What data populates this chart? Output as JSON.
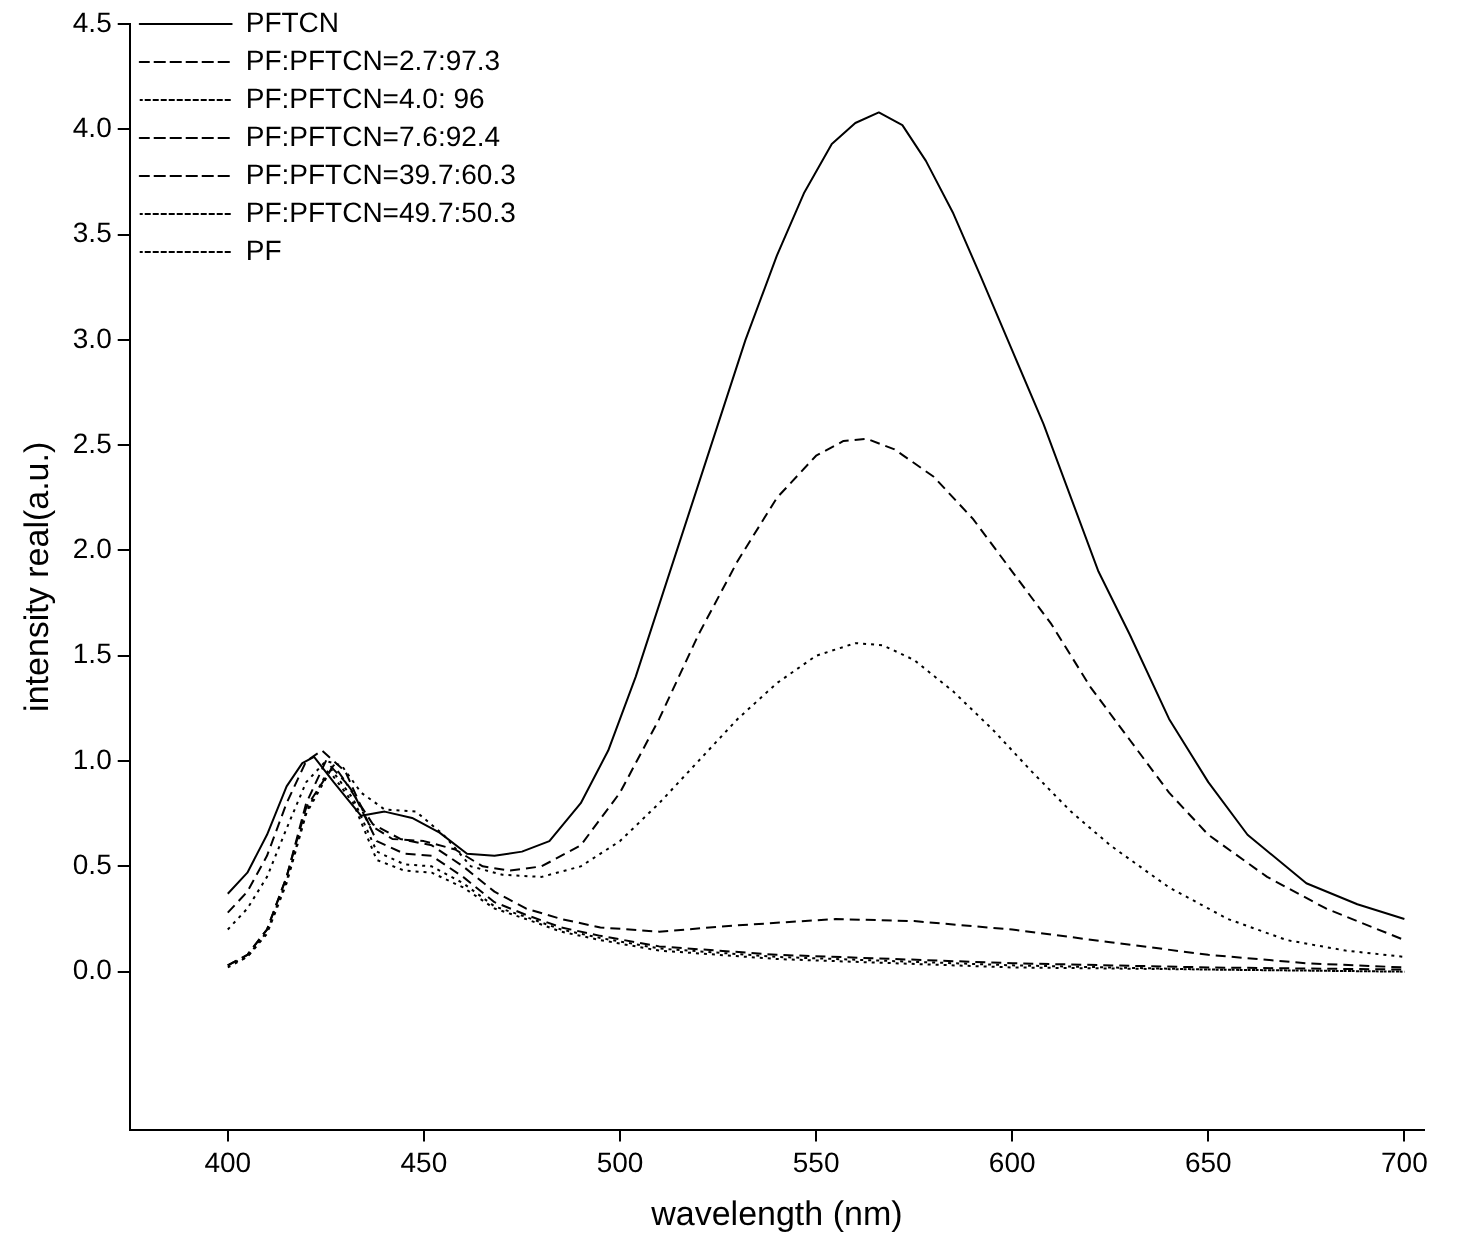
{
  "chart_data": {
    "type": "line",
    "xlabel": "wavelength (nm)",
    "ylabel": "intensity real(a.u.)",
    "xlim": [
      375,
      705
    ],
    "xticks": [
      400,
      450,
      500,
      550,
      600,
      650,
      700
    ],
    "ylim": [
      -0.75,
      4.5
    ],
    "yticks": [
      {
        "value": 0,
        "label": "0.0"
      },
      {
        "value": 0.5,
        "label": "0.5"
      },
      {
        "value": 1,
        "label": "1.0"
      },
      {
        "value": 1.5,
        "label": "1.5"
      },
      {
        "value": 2,
        "label": "2.0"
      },
      {
        "value": 2.5,
        "label": "2.5"
      },
      {
        "value": 3,
        "label": "3.0"
      },
      {
        "value": 3.5,
        "label": "3.5"
      },
      {
        "value": 4,
        "label": "4.0"
      },
      {
        "value": 4.5,
        "label": "4.5"
      }
    ],
    "grid": false,
    "legend": "top left",
    "marker": "none",
    "series": [
      {
        "name": "PFTCN",
        "color": "#000000",
        "line_style": "solid",
        "x": [
          400,
          405,
          410,
          415,
          419,
          422,
          427,
          434,
          440,
          447,
          454,
          461,
          468,
          475,
          482,
          490,
          497,
          504,
          511,
          518,
          525,
          532,
          540,
          547,
          554,
          560,
          566,
          572,
          578,
          585,
          592,
          600,
          608,
          615,
          622,
          630,
          640,
          650,
          660,
          675,
          688,
          700
        ],
        "values": [
          0.37,
          0.47,
          0.65,
          0.88,
          0.99,
          1.02,
          0.9,
          0.74,
          0.76,
          0.73,
          0.66,
          0.56,
          0.55,
          0.57,
          0.62,
          0.8,
          1.05,
          1.4,
          1.8,
          2.2,
          2.6,
          3.0,
          3.4,
          3.7,
          3.93,
          4.03,
          4.08,
          4.02,
          3.85,
          3.6,
          3.3,
          2.95,
          2.6,
          2.25,
          1.9,
          1.6,
          1.2,
          0.9,
          0.65,
          0.42,
          0.32,
          0.25
        ]
      },
      {
        "name": "PF:PFTCN=2.7:97.3",
        "color": "#000000",
        "line_style": "dashed",
        "x": [
          400,
          405,
          410,
          415,
          420,
          424,
          430,
          436,
          442,
          450,
          458,
          465,
          472,
          480,
          490,
          500,
          510,
          520,
          530,
          540,
          550,
          557,
          563,
          570,
          580,
          590,
          600,
          610,
          620,
          630,
          640,
          650,
          665,
          680,
          700
        ],
        "values": [
          0.28,
          0.38,
          0.55,
          0.8,
          1.0,
          1.05,
          0.95,
          0.7,
          0.63,
          0.62,
          0.58,
          0.5,
          0.48,
          0.5,
          0.6,
          0.85,
          1.2,
          1.6,
          1.95,
          2.25,
          2.45,
          2.52,
          2.53,
          2.48,
          2.35,
          2.15,
          1.9,
          1.65,
          1.35,
          1.1,
          0.85,
          0.65,
          0.45,
          0.3,
          0.15
        ]
      },
      {
        "name": "PF:PFTCN=4.0: 96",
        "color": "#000000",
        "line_style": "dotted",
        "x": [
          400,
          405,
          410,
          415,
          420,
          425,
          429,
          434,
          440,
          448,
          455,
          462,
          470,
          480,
          490,
          500,
          510,
          520,
          530,
          540,
          550,
          560,
          567,
          575,
          585,
          595,
          605,
          615,
          625,
          640,
          655,
          670,
          685,
          700
        ],
        "values": [
          0.2,
          0.3,
          0.45,
          0.68,
          0.9,
          1.0,
          0.98,
          0.85,
          0.77,
          0.76,
          0.65,
          0.5,
          0.46,
          0.45,
          0.5,
          0.62,
          0.8,
          1.0,
          1.2,
          1.37,
          1.5,
          1.56,
          1.55,
          1.48,
          1.33,
          1.15,
          0.95,
          0.76,
          0.6,
          0.4,
          0.25,
          0.15,
          0.1,
          0.07
        ]
      },
      {
        "name": "PF:PFTCN=7.6:92.4",
        "color": "#000000",
        "line_style": "dashed",
        "x": [
          400,
          405,
          410,
          415,
          420,
          425,
          430,
          437,
          444,
          452,
          460,
          468,
          476,
          485,
          495,
          510,
          530,
          555,
          575,
          600,
          625,
          650,
          675,
          700
        ],
        "values": [
          0.03,
          0.08,
          0.2,
          0.45,
          0.8,
          1.0,
          0.9,
          0.7,
          0.63,
          0.6,
          0.5,
          0.38,
          0.3,
          0.25,
          0.21,
          0.19,
          0.22,
          0.25,
          0.24,
          0.2,
          0.14,
          0.08,
          0.04,
          0.02
        ]
      },
      {
        "name": "PF:PFTCN=39.7:60.3",
        "color": "#000000",
        "line_style": "dashed",
        "x": [
          400,
          405,
          410,
          415,
          420,
          427,
          432,
          438,
          445,
          452,
          460,
          468,
          476,
          485,
          495,
          510,
          540,
          570,
          600,
          650,
          700
        ],
        "values": [
          0.03,
          0.08,
          0.2,
          0.45,
          0.78,
          0.98,
          0.85,
          0.62,
          0.56,
          0.55,
          0.45,
          0.33,
          0.27,
          0.21,
          0.17,
          0.12,
          0.08,
          0.06,
          0.04,
          0.02,
          0.01
        ]
      },
      {
        "name": "PF:PFTCN=49.7:50.3",
        "color": "#000000",
        "line_style": "dotted",
        "x": [
          400,
          405,
          410,
          415,
          420,
          426,
          432,
          438,
          445,
          452,
          460,
          468,
          476,
          485,
          495,
          510,
          540,
          570,
          600,
          650,
          700
        ],
        "values": [
          0.02,
          0.07,
          0.19,
          0.43,
          0.76,
          0.97,
          0.82,
          0.57,
          0.51,
          0.5,
          0.42,
          0.31,
          0.26,
          0.2,
          0.16,
          0.11,
          0.07,
          0.05,
          0.03,
          0.01,
          0.0
        ]
      },
      {
        "name": "PF",
        "color": "#000000",
        "line_style": "dotted",
        "x": [
          400,
          405,
          410,
          415,
          420,
          426,
          432,
          438,
          445,
          452,
          460,
          468,
          476,
          485,
          495,
          510,
          540,
          570,
          600,
          650,
          700
        ],
        "values": [
          0.03,
          0.07,
          0.18,
          0.42,
          0.75,
          0.95,
          0.8,
          0.53,
          0.48,
          0.47,
          0.4,
          0.3,
          0.25,
          0.19,
          0.15,
          0.1,
          0.06,
          0.04,
          0.02,
          0.01,
          0.0
        ]
      }
    ]
  }
}
